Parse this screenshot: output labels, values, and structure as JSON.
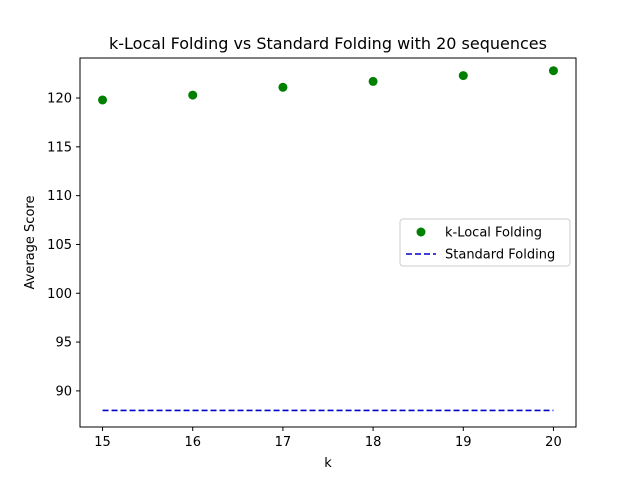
{
  "chart_data": {
    "type": "scatter",
    "title": "k-Local Folding vs Standard Folding with 20 sequences",
    "xlabel": "k",
    "ylabel": "Average Score",
    "xlim": [
      14.75,
      20.25
    ],
    "ylim": [
      86.3,
      124.1
    ],
    "xticks": [
      15,
      16,
      17,
      18,
      19,
      20
    ],
    "yticks": [
      90,
      95,
      100,
      105,
      110,
      115,
      120
    ],
    "grid": false,
    "legend_position": "right",
    "series": [
      {
        "name": "k-Local Folding",
        "style": "points",
        "color": "#008000",
        "x": [
          15,
          16,
          17,
          18,
          19,
          20
        ],
        "y": [
          119.8,
          120.3,
          121.1,
          121.7,
          122.3,
          122.8
        ]
      },
      {
        "name": "Standard Folding",
        "style": "dashed-line",
        "color": "#0000cc",
        "x": [
          15,
          20
        ],
        "y": [
          88.0,
          88.0
        ]
      }
    ]
  }
}
